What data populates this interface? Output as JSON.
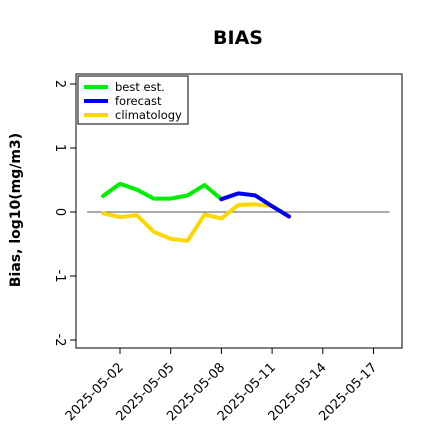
{
  "chart_data": {
    "type": "line",
    "title": "BIAS",
    "xlabel": "",
    "ylabel": "Bias, log10(mg/m3)",
    "ylim": [
      -2,
      2
    ],
    "yticks": [
      -2,
      -1,
      0,
      1,
      2
    ],
    "xlim": [
      "2025-04-30",
      "2025-05-18"
    ],
    "xticks": [
      {
        "label": "2025-05-02",
        "color": "#000000"
      },
      {
        "label": "2025-05-05",
        "color": "#000000"
      },
      {
        "label": "2025-05-08",
        "color": "#228b22"
      },
      {
        "label": "2025-05-11",
        "color": "#000000"
      },
      {
        "label": "2025-05-14",
        "color": "#000000"
      },
      {
        "label": "2025-05-17",
        "color": "#000000"
      }
    ],
    "reference_line": 0,
    "grid": false,
    "legend_position": "top-left",
    "series": [
      {
        "name": "best est.",
        "color": "#00ee00",
        "x": [
          "2025-05-01",
          "2025-05-02",
          "2025-05-03",
          "2025-05-04",
          "2025-05-05",
          "2025-05-06",
          "2025-05-07",
          "2025-05-08"
        ],
        "values": [
          0.25,
          0.44,
          0.35,
          0.21,
          0.21,
          0.26,
          0.42,
          0.2
        ]
      },
      {
        "name": "forecast",
        "color": "#0000ee",
        "x": [
          "2025-05-08",
          "2025-05-09",
          "2025-05-10",
          "2025-05-11",
          "2025-05-12"
        ],
        "values": [
          0.2,
          0.29,
          0.26,
          0.09,
          -0.07
        ]
      },
      {
        "name": "climatology",
        "color": "#ffd700",
        "x": [
          "2025-05-01",
          "2025-05-02",
          "2025-05-03",
          "2025-05-04",
          "2025-05-05",
          "2025-05-06",
          "2025-05-07",
          "2025-05-08",
          "2025-05-09",
          "2025-05-10",
          "2025-05-11",
          "2025-05-12"
        ],
        "values": [
          -0.02,
          -0.08,
          -0.05,
          -0.31,
          -0.42,
          -0.45,
          -0.04,
          -0.1,
          0.11,
          0.12,
          0.09,
          -0.07
        ]
      }
    ]
  }
}
